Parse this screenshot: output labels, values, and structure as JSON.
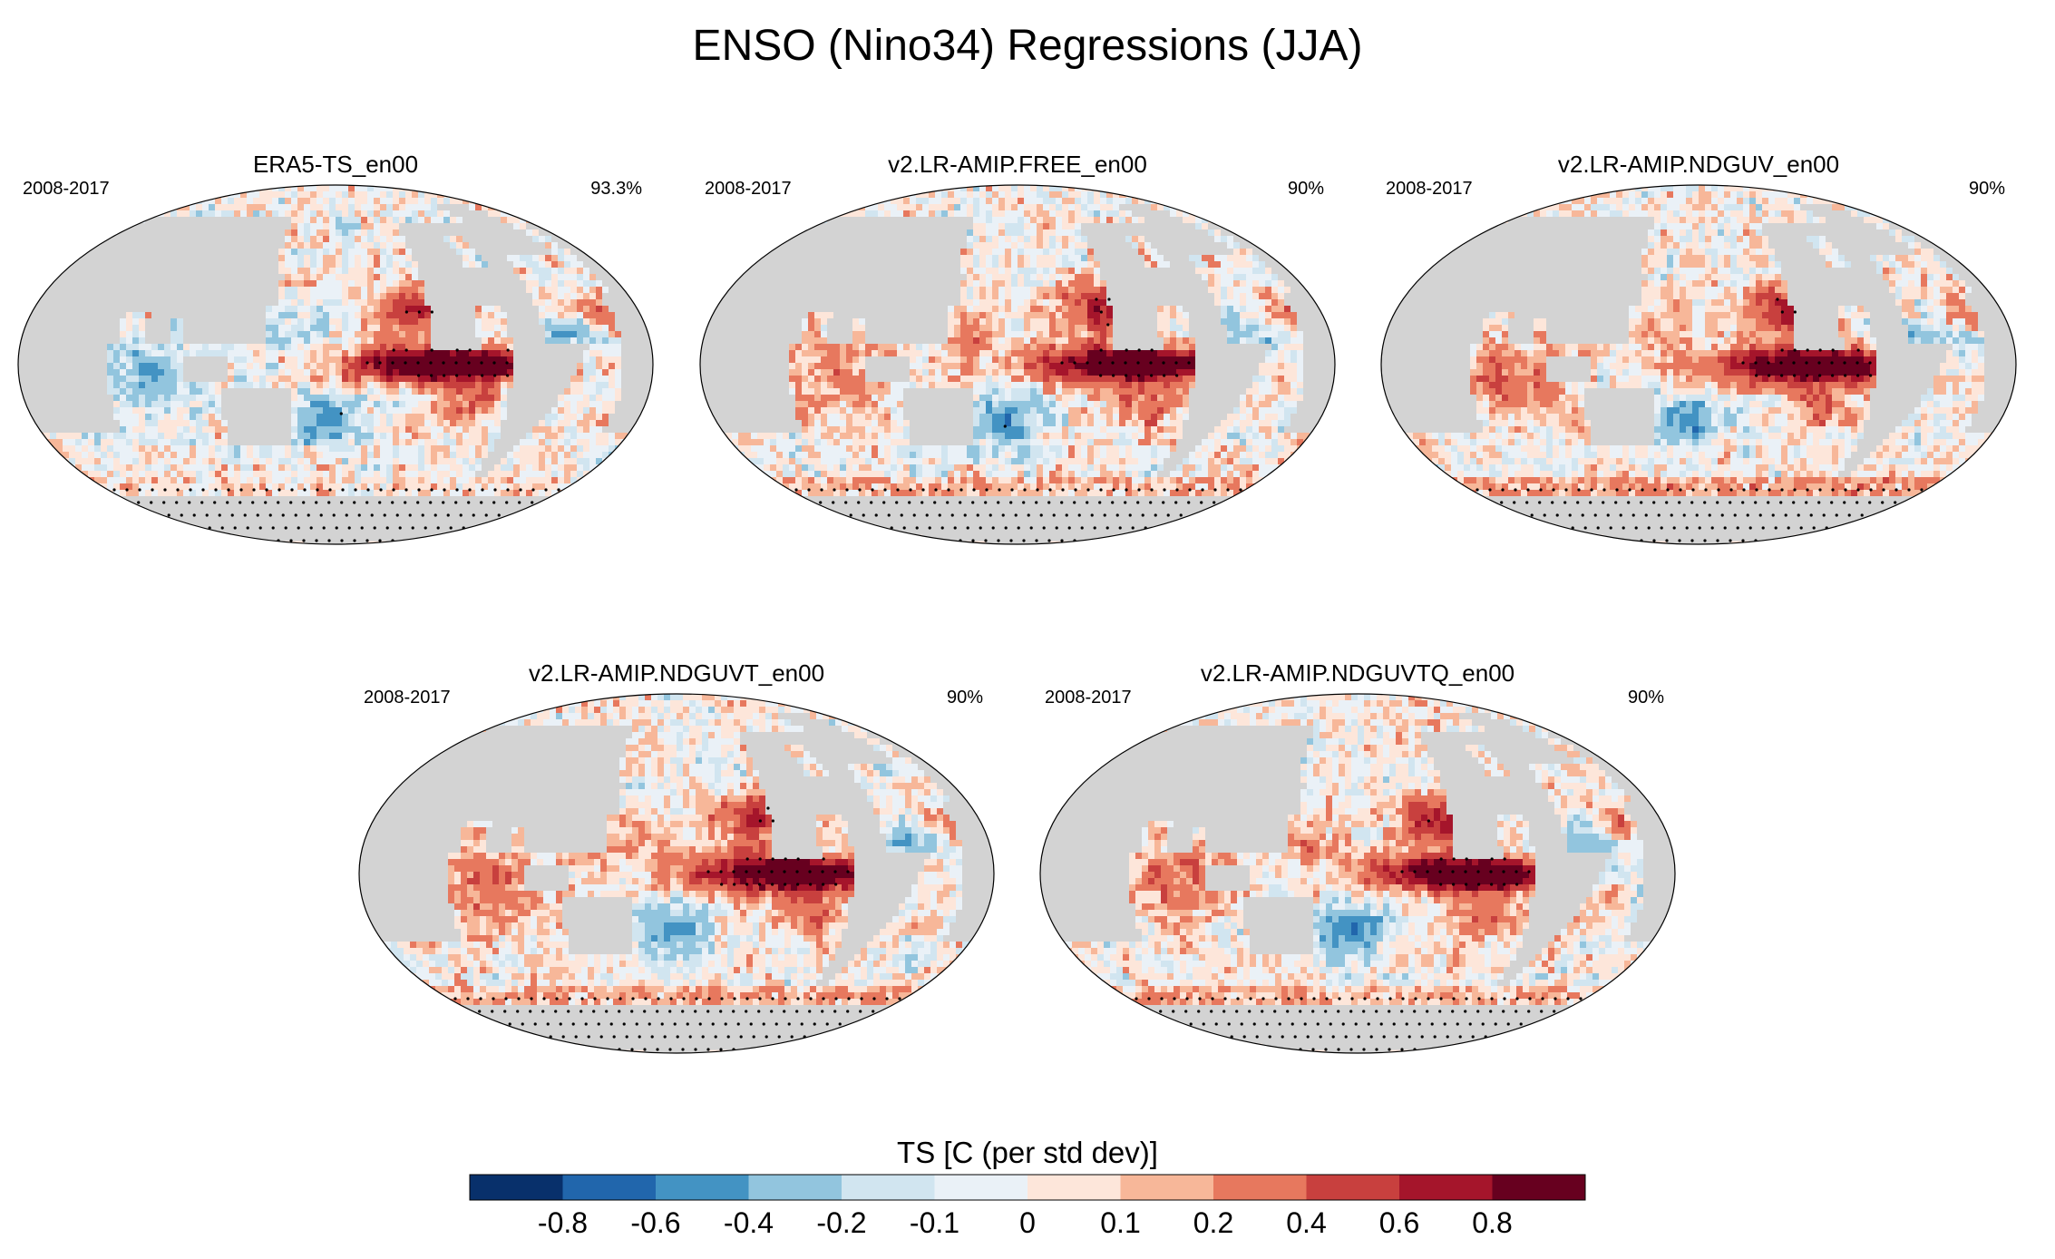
{
  "figure": {
    "title": "ENSO (Nino34) Regressions (JJA)"
  },
  "chart_data": {
    "type": "heatmap",
    "variable": "TS",
    "units": "C (per std dev)",
    "colorbar_label": "TS [C (per std dev)]",
    "levels": [
      "-0.8",
      "-0.6",
      "-0.4",
      "-0.2",
      "-0.1",
      "0",
      "0.1",
      "0.2",
      "0.4",
      "0.6",
      "0.8"
    ],
    "colors": [
      "#08306b",
      "#2166ac",
      "#4393c3",
      "#92c5de",
      "#d1e5f0",
      "#eaf1f7",
      "#fde6da",
      "#f7b799",
      "#e7785e",
      "#c8403e",
      "#a5152b",
      "#67001f"
    ],
    "land_color": "#d3d3d3",
    "significance": "stippled",
    "panels": [
      {
        "name": "ERA5-TS_en00",
        "period": "2008-2017",
        "percent": "93.3%",
        "pattern": {
          "east_pacific_max": 1.0,
          "indo_west_pacific": -0.35,
          "south_pacific": -0.4,
          "north_atlantic": -0.35,
          "north_pacific": 0.6,
          "southern_ocean": 0.05
        }
      },
      {
        "name": "v2.LR-AMIP.FREE_en00",
        "period": "2008-2017",
        "percent": "90%",
        "pattern": {
          "east_pacific_max": 1.0,
          "indo_west_pacific": 0.3,
          "south_pacific": -0.35,
          "north_atlantic": -0.3,
          "north_pacific": 0.65,
          "southern_ocean": 0.15
        }
      },
      {
        "name": "v2.LR-AMIP.NDGUV_en00",
        "period": "2008-2017",
        "percent": "90%",
        "pattern": {
          "east_pacific_max": 1.0,
          "indo_west_pacific": 0.35,
          "south_pacific": -0.35,
          "north_atlantic": -0.35,
          "north_pacific": 0.65,
          "southern_ocean": 0.2
        }
      },
      {
        "name": "v2.LR-AMIP.NDGUVT_en00",
        "period": "2008-2017",
        "percent": "90%",
        "pattern": {
          "east_pacific_max": 1.0,
          "indo_west_pacific": 0.35,
          "south_pacific": -0.4,
          "north_atlantic": -0.4,
          "north_pacific": 0.65,
          "southern_ocean": 0.15
        }
      },
      {
        "name": "v2.LR-AMIP.NDGUVTQ_en00",
        "period": "2008-2017",
        "percent": "90%",
        "pattern": {
          "east_pacific_max": 1.0,
          "indo_west_pacific": 0.35,
          "south_pacific": -0.4,
          "north_atlantic": -0.4,
          "north_pacific": 0.65,
          "southern_ocean": 0.15
        }
      }
    ]
  }
}
